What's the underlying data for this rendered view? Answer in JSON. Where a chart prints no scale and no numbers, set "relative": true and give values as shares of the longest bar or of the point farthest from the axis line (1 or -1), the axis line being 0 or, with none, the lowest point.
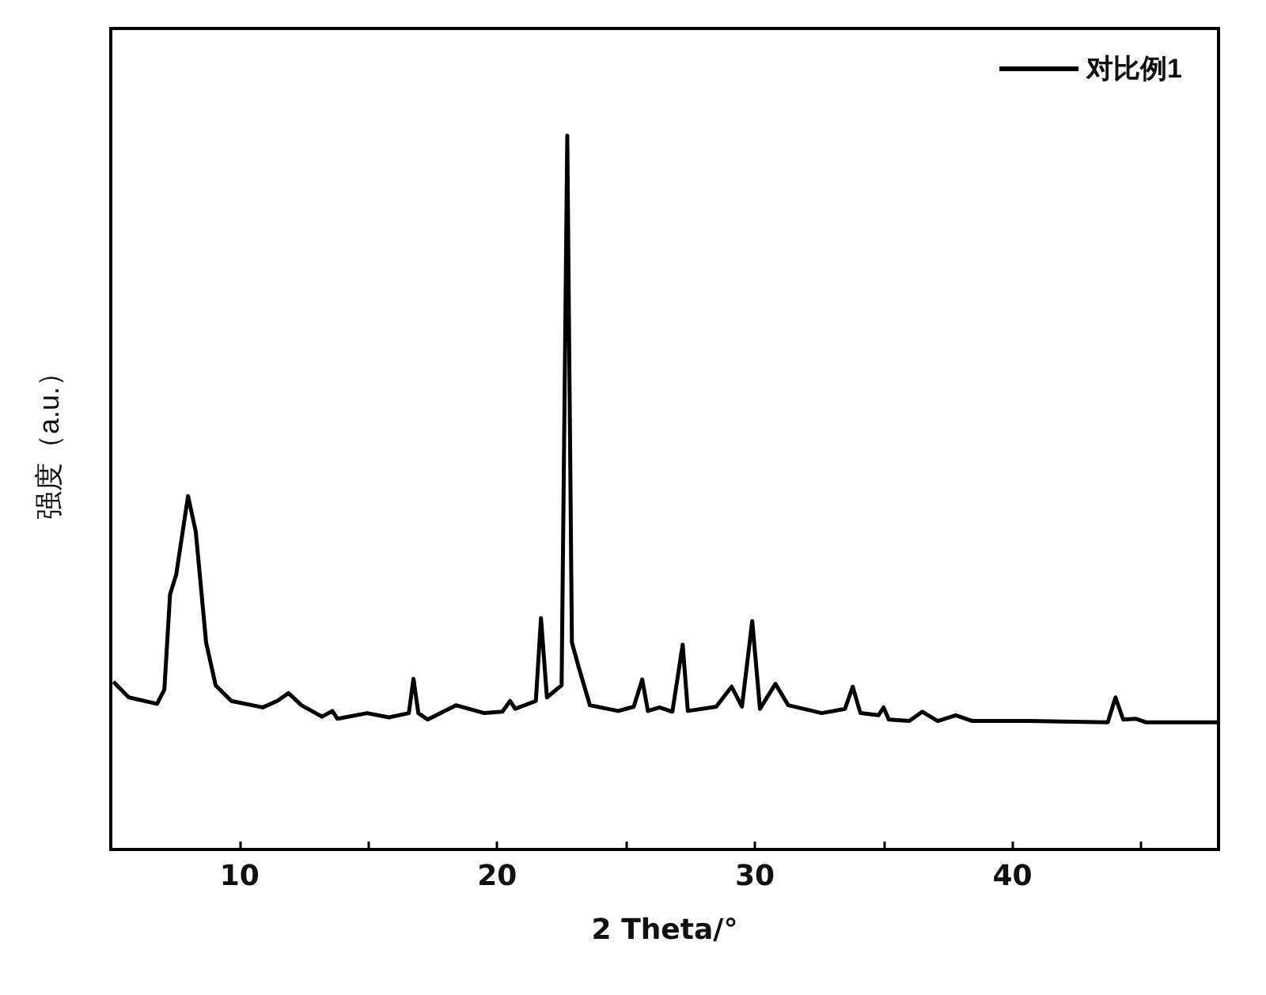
{
  "chart_data": {
    "type": "line",
    "xlabel": "2 Theta/°",
    "ylabel": "强度（a.u.）",
    "relative": true,
    "xlim": [
      5,
      48
    ],
    "xticks": [
      10,
      {
        "value": 15,
        "label": null
      },
      20,
      {
        "value": 25,
        "label": null
      },
      30,
      {
        "value": 35,
        "label": null
      },
      40,
      {
        "value": 45,
        "label": null
      }
    ],
    "grid": false,
    "legend": "top right",
    "marker": "none",
    "line_style": "solid",
    "series": [
      {
        "name": "对比例1",
        "color": "#000000",
        "x": [
          5.1,
          5.7,
          6.8,
          7.08,
          7.3,
          7.54,
          8.0,
          8.3,
          8.7,
          9.07,
          9.68,
          10.9,
          11.46,
          11.9,
          12.4,
          13.2,
          13.6,
          13.8,
          14.95,
          15.8,
          16.57,
          16.75,
          16.94,
          17.3,
          18.4,
          19.5,
          20.2,
          20.5,
          20.7,
          21.5,
          21.7,
          21.93,
          22.5,
          22.72,
          22.9,
          23.15,
          23.6,
          24.7,
          25.3,
          25.63,
          25.85,
          26.3,
          26.8,
          27.2,
          27.4,
          28.5,
          29.1,
          29.5,
          29.9,
          30.2,
          30.8,
          31.3,
          32.6,
          33.5,
          33.8,
          34.1,
          34.8,
          35.0,
          35.2,
          36.0,
          36.5,
          37.1,
          37.8,
          38.45,
          40.6,
          43.7,
          44.0,
          44.3,
          44.8,
          45.2,
          47.95
        ],
        "values": [
          0.235,
          0.213,
          0.204,
          0.224,
          0.357,
          0.385,
          0.495,
          0.445,
          0.29,
          0.23,
          0.208,
          0.199,
          0.208,
          0.219,
          0.202,
          0.186,
          0.194,
          0.183,
          0.191,
          0.185,
          0.191,
          0.239,
          0.191,
          0.182,
          0.202,
          0.191,
          0.193,
          0.208,
          0.197,
          0.208,
          0.324,
          0.213,
          0.23,
          1.0,
          0.29,
          0.257,
          0.202,
          0.194,
          0.2,
          0.238,
          0.194,
          0.199,
          0.193,
          0.287,
          0.194,
          0.2,
          0.228,
          0.2,
          0.32,
          0.197,
          0.232,
          0.202,
          0.191,
          0.197,
          0.228,
          0.191,
          0.188,
          0.199,
          0.182,
          0.18,
          0.193,
          0.18,
          0.188,
          0.18,
          0.18,
          0.178,
          0.213,
          0.182,
          0.183,
          0.178,
          0.178
        ]
      }
    ]
  }
}
